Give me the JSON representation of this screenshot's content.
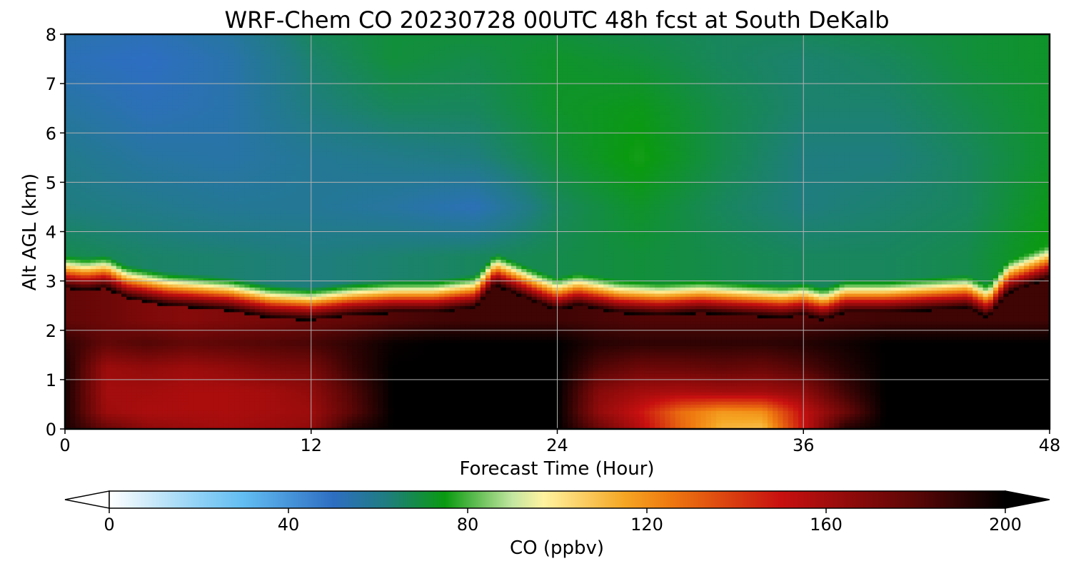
{
  "chart_data": {
    "type": "heatmap",
    "title": "WRF-Chem CO  20230728 00UTC 48h fcst at South DeKalb",
    "xlabel": "Forecast Time (Hour)",
    "ylabel": "Alt AGL (km)",
    "xlim": [
      0,
      48
    ],
    "ylim": [
      0,
      8
    ],
    "x_ticks": [
      "0",
      "12",
      "24",
      "36",
      "48"
    ],
    "y_ticks": [
      "0",
      "1",
      "2",
      "3",
      "4",
      "5",
      "6",
      "7",
      "8"
    ],
    "grid": true,
    "colorbar": {
      "label": "CO  (ppbv)",
      "range": [
        0,
        200
      ],
      "ticks": [
        "0",
        "40",
        "80",
        "120",
        "160",
        "200"
      ],
      "extend": "both",
      "stops": [
        {
          "value": 0,
          "color": "#ffffff"
        },
        {
          "value": 20,
          "color": "#8fd1f5"
        },
        {
          "value": 30,
          "color": "#62bdf2"
        },
        {
          "value": 50,
          "color": "#2e6ec2"
        },
        {
          "value": 62,
          "color": "#1f7d7f"
        },
        {
          "value": 75,
          "color": "#0a9a10"
        },
        {
          "value": 90,
          "color": "#c3e6a0"
        },
        {
          "value": 97,
          "color": "#fff3a0"
        },
        {
          "value": 115,
          "color": "#f5a623"
        },
        {
          "value": 125,
          "color": "#ef7a10"
        },
        {
          "value": 150,
          "color": "#c81010"
        },
        {
          "value": 180,
          "color": "#5a0606"
        },
        {
          "value": 200,
          "color": "#000000"
        }
      ]
    },
    "boundary_layer_top_km": {
      "hour": [
        0,
        1,
        2,
        3,
        5,
        8,
        10,
        12,
        14,
        16,
        18,
        20,
        21,
        23,
        24,
        25,
        27,
        29,
        31,
        33,
        35,
        36,
        37,
        38,
        40,
        42,
        44,
        45,
        46,
        48
      ],
      "height": [
        3.1,
        3.05,
        3.1,
        2.9,
        2.75,
        2.65,
        2.5,
        2.45,
        2.55,
        2.6,
        2.6,
        2.7,
        3.15,
        2.8,
        2.65,
        2.75,
        2.6,
        2.55,
        2.6,
        2.55,
        2.5,
        2.55,
        2.45,
        2.6,
        2.6,
        2.65,
        2.7,
        2.5,
        3.0,
        3.3
      ]
    },
    "free_troposphere_ppbv": {
      "hour": [
        0,
        4,
        8,
        12,
        16,
        20,
        24,
        28,
        32,
        36,
        40,
        44,
        48
      ],
      "altitude_km": [
        3.5,
        4.5,
        5.5,
        6.5,
        7.5,
        8.0
      ],
      "values": [
        [
          68,
          65,
          64,
          62,
          64,
          66,
          68,
          70,
          68,
          66,
          66,
          68,
          76
        ],
        [
          62,
          60,
          58,
          58,
          56,
          52,
          66,
          72,
          66,
          62,
          64,
          66,
          74
        ],
        [
          60,
          56,
          55,
          58,
          60,
          62,
          70,
          76,
          68,
          62,
          62,
          66,
          72
        ],
        [
          56,
          52,
          54,
          62,
          66,
          66,
          72,
          74,
          68,
          64,
          64,
          68,
          72
        ],
        [
          52,
          50,
          54,
          64,
          70,
          68,
          72,
          70,
          66,
          64,
          66,
          70,
          72
        ],
        [
          54,
          52,
          56,
          66,
          70,
          70,
          70,
          68,
          66,
          66,
          68,
          70,
          72
        ]
      ]
    },
    "boundary_layer_ppbv": {
      "hour": [
        0,
        2,
        4,
        6,
        8,
        10,
        12,
        14,
        16,
        18,
        20,
        22,
        24,
        26,
        28,
        30,
        32,
        34,
        36,
        38,
        40,
        42,
        44,
        46,
        48
      ],
      "altitude_km": [
        0.05,
        0.35,
        0.75,
        1.25,
        1.75,
        2.2
      ],
      "values": [
        [
          195,
          175,
          165,
          162,
          160,
          162,
          165,
          190,
          200,
          200,
          200,
          200,
          200,
          175,
          155,
          130,
          112,
          110,
          150,
          190,
          200,
          200,
          200,
          200,
          200
        ],
        [
          195,
          162,
          158,
          158,
          158,
          160,
          162,
          180,
          200,
          200,
          200,
          200,
          200,
          165,
          150,
          128,
          118,
          120,
          152,
          175,
          200,
          200,
          200,
          200,
          200
        ],
        [
          195,
          160,
          160,
          158,
          158,
          160,
          165,
          182,
          200,
          200,
          200,
          200,
          200,
          168,
          160,
          158,
          160,
          160,
          165,
          185,
          200,
          200,
          200,
          200,
          200
        ],
        [
          195,
          162,
          165,
          162,
          165,
          170,
          172,
          188,
          200,
          200,
          200,
          200,
          200,
          182,
          175,
          176,
          178,
          176,
          182,
          192,
          200,
          200,
          200,
          200,
          200
        ],
        [
          190,
          178,
          182,
          178,
          180,
          182,
          184,
          190,
          198,
          200,
          200,
          200,
          200,
          192,
          190,
          190,
          190,
          190,
          192,
          196,
          200,
          200,
          200,
          200,
          200
        ],
        [
          178,
          175,
          170,
          168,
          170,
          172,
          175,
          178,
          182,
          185,
          186,
          186,
          186,
          184,
          182,
          182,
          182,
          182,
          182,
          184,
          186,
          186,
          186,
          186,
          186
        ]
      ]
    }
  }
}
